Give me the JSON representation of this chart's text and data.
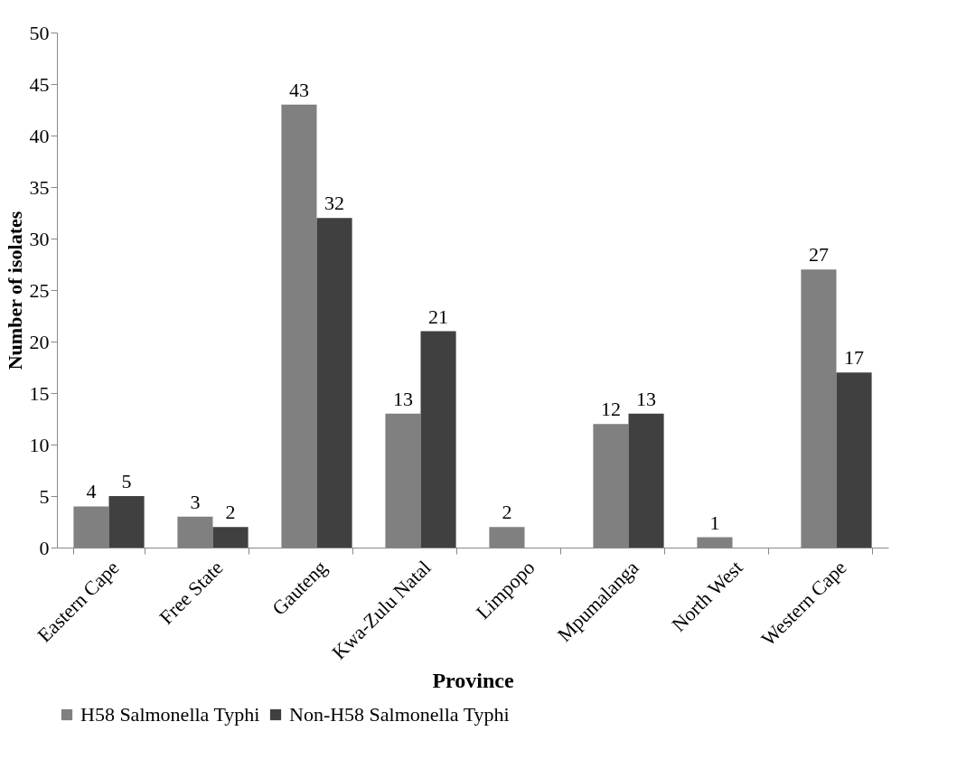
{
  "chart_data": {
    "type": "bar",
    "xlabel": "Province",
    "ylabel": "Number of isolates",
    "categories": [
      "Eastern Cape",
      "Free State",
      "Gauteng",
      "Kwa-Zulu Natal",
      "Limpopo",
      "Mpumalanga",
      "North West",
      "Western Cape"
    ],
    "series": [
      {
        "name": "H58 Salmonella Typhi",
        "color": "#808080",
        "values": [
          4,
          3,
          43,
          13,
          2,
          12,
          1,
          27
        ]
      },
      {
        "name": "Non-H58 Salmonella Typhi",
        "color": "#404040",
        "values": [
          5,
          2,
          32,
          21,
          null,
          13,
          null,
          17
        ]
      }
    ],
    "ylim": [
      0,
      50
    ],
    "yticks": [
      0,
      5,
      10,
      15,
      20,
      25,
      30,
      35,
      40,
      45,
      50
    ],
    "grid": false,
    "legend": "bottom",
    "data_labels": true
  }
}
